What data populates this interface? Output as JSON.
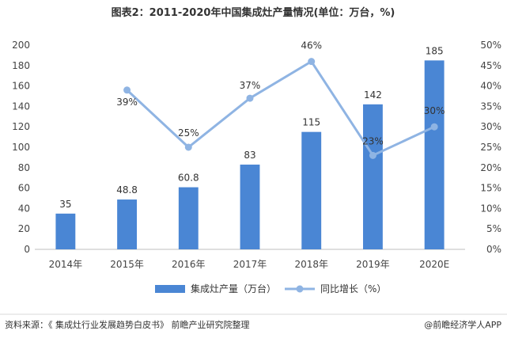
{
  "chart_data": {
    "type": "bar",
    "title": "图表2：2011-2020年中国集成灶产量情况(单位：万台，%)",
    "categories": [
      "2014年",
      "2015年",
      "2016年",
      "2017年",
      "2018年",
      "2019年",
      "2020E"
    ],
    "series": [
      {
        "name": "集成灶产量（万台）",
        "type": "bar",
        "axis": "left",
        "color": "#4a86d4",
        "values": [
          35,
          48.8,
          60.8,
          83,
          115,
          142,
          185
        ],
        "labels": [
          "35",
          "48.8",
          "60.8",
          "83",
          "115",
          "142",
          "185"
        ]
      },
      {
        "name": "同比增长（%）",
        "type": "line",
        "axis": "right",
        "color": "#8fb4e3",
        "values": [
          null,
          39,
          25,
          37,
          46,
          23,
          30
        ],
        "labels": [
          "",
          "39%",
          "25%",
          "37%",
          "46%",
          "23%",
          "30%"
        ]
      }
    ],
    "y_left": {
      "ylim": [
        0,
        200
      ],
      "ticks": [
        "0",
        "20",
        "40",
        "60",
        "80",
        "100",
        "120",
        "140",
        "160",
        "180",
        "200"
      ]
    },
    "y_right": {
      "ylim": [
        0,
        50
      ],
      "ticks": [
        "0%",
        "5%",
        "10%",
        "15%",
        "20%",
        "25%",
        "30%",
        "35%",
        "40%",
        "45%",
        "50%"
      ]
    },
    "grid": false,
    "legend_position": "bottom"
  },
  "footer": {
    "source": "资料来源：《 集成灶行业发展趋势白皮书》 前瞻产业研究院整理",
    "brand": "@前瞻经济学人APP"
  }
}
